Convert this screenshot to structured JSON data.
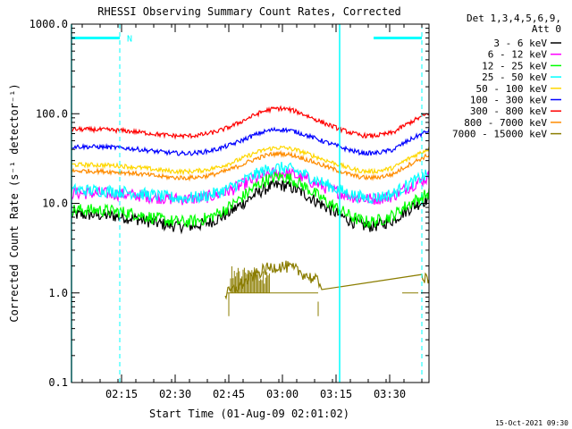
{
  "chart_data": {
    "type": "line",
    "title": "RHESSI Observing Summary Count Rates, Corrected",
    "xlabel": "Start Time (01-Aug-09 02:01:02)",
    "ylabel": "Corrected Count Rate (s⁻¹ detector⁻¹)",
    "yscale": "log",
    "ylim": [
      0.1,
      1000
    ],
    "xlim_minutes": [
      0,
      100
    ],
    "x_ticks": [
      {
        "minute": 14,
        "label": "02:15"
      },
      {
        "minute": 29,
        "label": "02:30"
      },
      {
        "minute": 44,
        "label": "02:45"
      },
      {
        "minute": 59,
        "label": "03:00"
      },
      {
        "minute": 74,
        "label": "03:15"
      },
      {
        "minute": 89,
        "label": "03:30"
      }
    ],
    "y_ticks": [
      {
        "value": 1000,
        "label": "1000.0"
      },
      {
        "value": 100,
        "label": "100.0"
      },
      {
        "value": 10,
        "label": "10.0"
      },
      {
        "value": 1,
        "label": "1.0"
      },
      {
        "value": 0.1,
        "label": "0.1"
      }
    ],
    "legend_header": [
      "Det 1,3,4,5,6,9,",
      "Att 0"
    ],
    "legend_position": "top-right, outside plot",
    "series": [
      {
        "name": "3 - 6 keV",
        "color": "#000000",
        "base": 7.5,
        "peak": 16,
        "min": 4.5
      },
      {
        "name": "6 - 12 keV",
        "color": "#ff00ff",
        "base": 13,
        "peak": 22,
        "min": 10
      },
      {
        "name": "12 - 25 keV",
        "color": "#00ff00",
        "base": 8.5,
        "peak": 20,
        "min": 5
      },
      {
        "name": "25 - 50 keV",
        "color": "#00ffff",
        "base": 14,
        "peak": 25,
        "min": 10
      },
      {
        "name": "50 - 100 keV",
        "color": "#ffd700",
        "base": 27,
        "peak": 42,
        "min": 20
      },
      {
        "name": "100 - 300 keV",
        "color": "#0000ff",
        "base": 43,
        "peak": 67,
        "min": 32
      },
      {
        "name": "300 - 800 keV",
        "color": "#ff0000",
        "base": 67,
        "peak": 115,
        "min": 50
      },
      {
        "name": "800 - 7000 keV",
        "color": "#ff8c00",
        "base": 23,
        "peak": 36,
        "min": 17
      },
      {
        "name": "7000 - 15000 keV",
        "color": "#8b7d00",
        "base": 1.0,
        "peak": 2.0,
        "min": 0.55
      }
    ],
    "flag_label": "N",
    "night_intervals_minutes": [
      [
        0,
        13.5
      ],
      [
        84.5,
        98
      ]
    ],
    "saa_intervals_minutes": [
      [
        75,
        100
      ]
    ]
  },
  "footer": {
    "timestamp": "15-Oct-2021 09:30"
  }
}
